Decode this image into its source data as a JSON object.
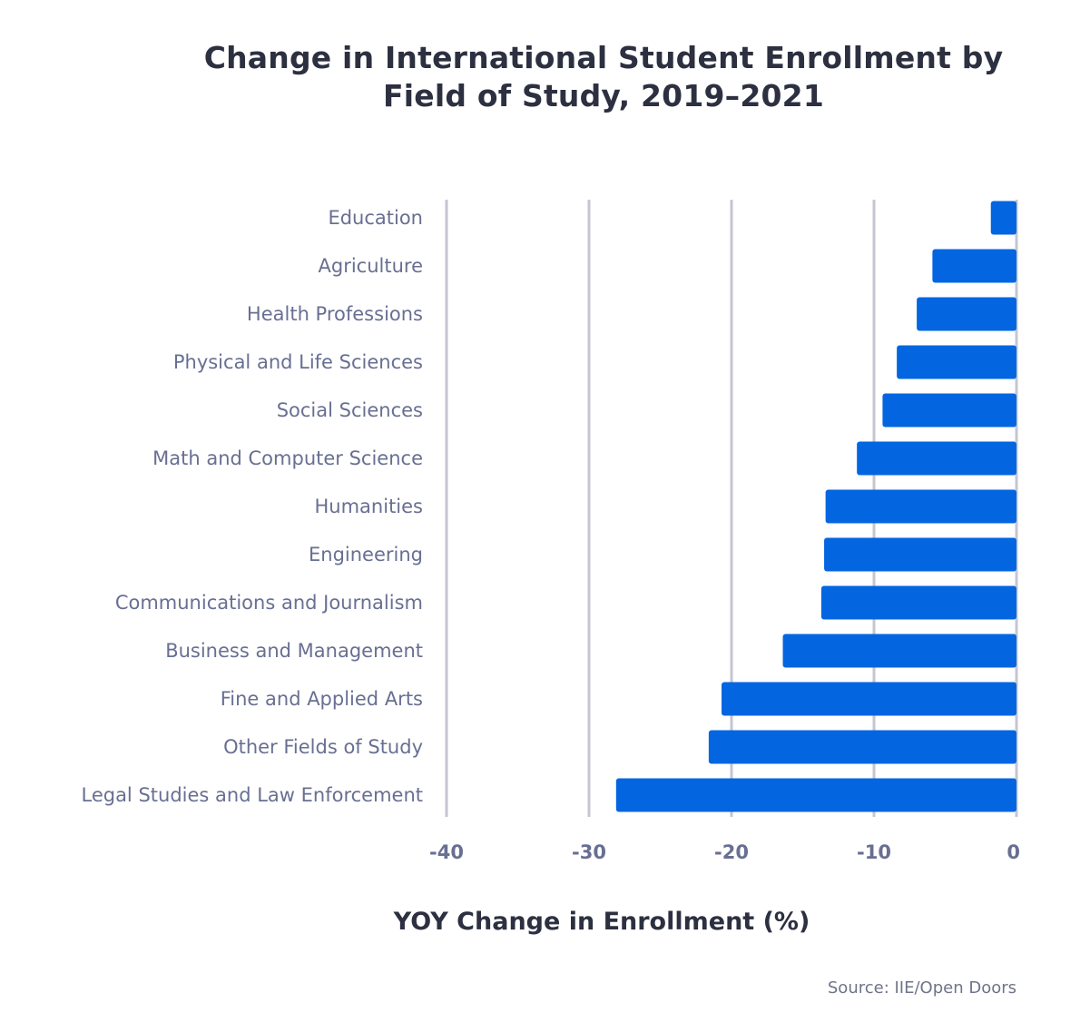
{
  "chart_data": {
    "type": "bar",
    "orientation": "horizontal",
    "title": "Change in International Student Enrollment by Field of Study, 2019–2021",
    "title_lines": [
      "Change in International Student Enrollment by",
      "Field of Study, 2019–2021"
    ],
    "xlabel": "YOY Change in Enrollment (%)",
    "ylabel": "",
    "xlim": [
      -40,
      0
    ],
    "xticks": [
      -40,
      -30,
      -20,
      -10,
      0
    ],
    "grid": "vertical",
    "bar_color": "#0366e0",
    "categories": [
      "Education",
      "Agriculture",
      "Health Professions",
      "Physical and Life Sciences",
      "Social Sciences",
      "Math and Computer Science",
      "Humanities",
      "Engineering",
      "Communications and Journalism",
      "Business and Management",
      "Fine and Applied Arts",
      "Other Fields of Study",
      "Legal Studies and Law Enforcement"
    ],
    "values": [
      -1.8,
      -5.9,
      -7.0,
      -8.4,
      -9.4,
      -11.2,
      -13.4,
      -13.5,
      -13.7,
      -16.4,
      -20.7,
      -21.6,
      -28.1
    ],
    "source": "Source: IIE/Open Doors"
  }
}
